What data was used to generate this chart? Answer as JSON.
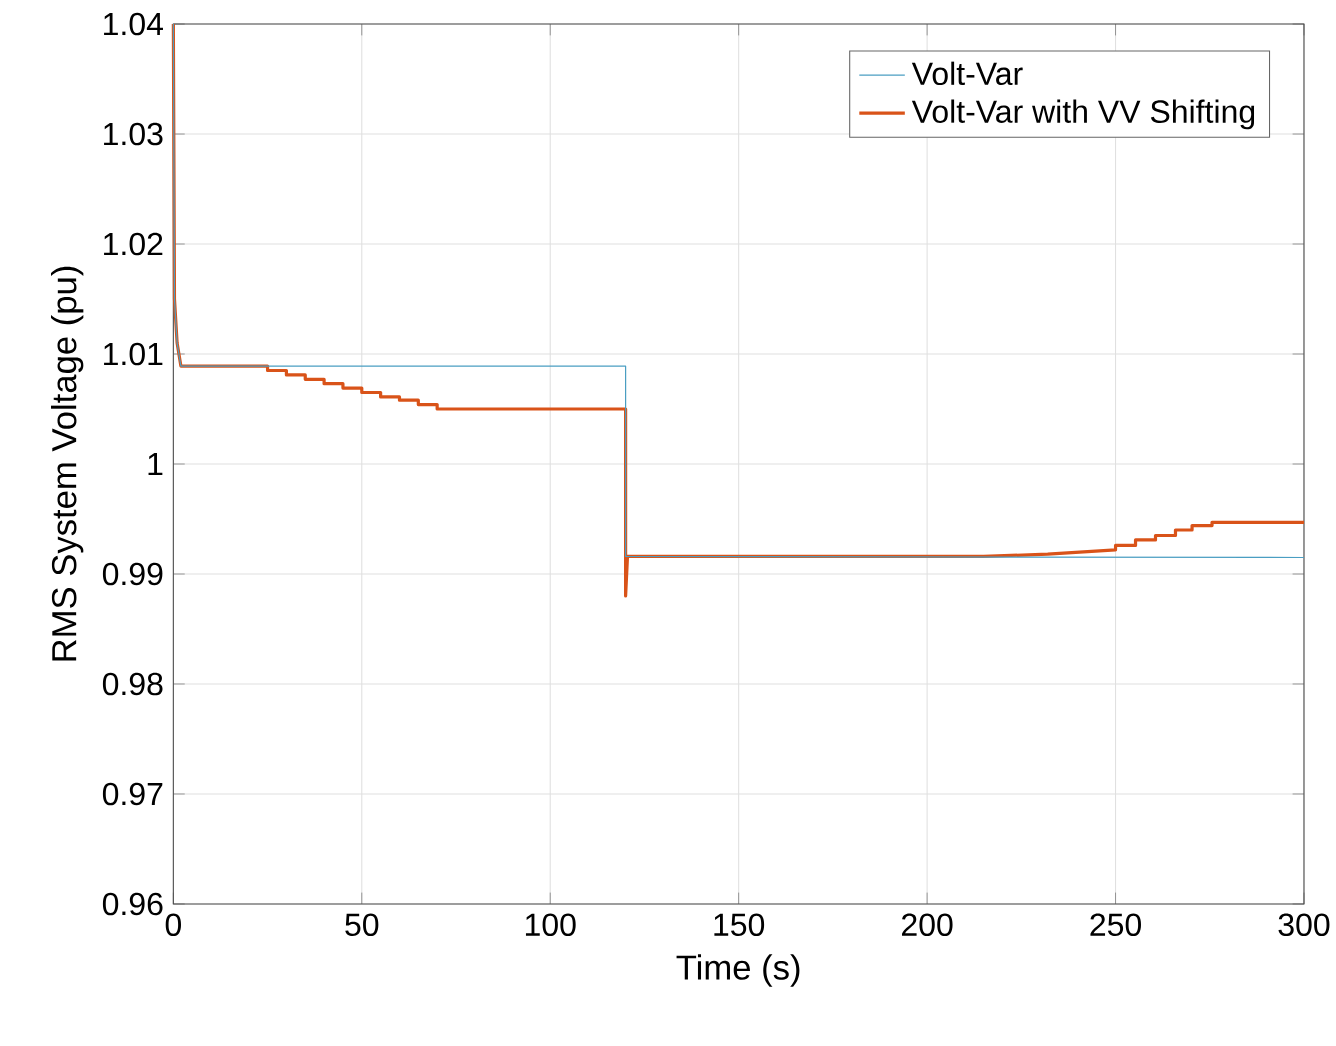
{
  "chart_data": {
    "type": "line",
    "xlabel": "Time (s)",
    "ylabel": "RMS System Voltage (pu)",
    "xlim": [
      0,
      300
    ],
    "ylim": [
      0.96,
      1.04
    ],
    "xticks": [
      0,
      50,
      100,
      150,
      200,
      250,
      300
    ],
    "yticks": [
      0.96,
      0.97,
      0.98,
      0.99,
      1,
      1.01,
      1.02,
      1.03,
      1.04
    ],
    "grid": true,
    "legend": "top right",
    "marker": "none",
    "line_style": "solid",
    "series": [
      {
        "name": "Volt-Var",
        "color": "#4a9ec2",
        "x": [
          0,
          0.3,
          1,
          2,
          120,
          120,
          300
        ],
        "values": [
          1.04,
          1.015,
          1.011,
          1.0089,
          1.0089,
          0.9916,
          0.9915
        ]
      },
      {
        "name": "Volt-Var with VV Shifting",
        "color": "#d95319",
        "x": [
          0,
          0.3,
          1,
          2,
          25,
          25,
          30,
          30,
          35,
          35,
          40,
          40,
          45,
          45,
          50,
          50,
          55,
          55,
          60,
          60,
          65,
          65,
          70,
          70,
          120,
          120,
          120.5,
          215,
          232,
          250,
          250,
          255.3,
          255.3,
          260.6,
          260.6,
          265.9,
          265.9,
          270.3,
          270.3,
          275.6,
          275.6,
          300
        ],
        "values": [
          1.04,
          1.015,
          1.011,
          1.0089,
          1.0089,
          1.0085,
          1.0085,
          1.0081,
          1.0081,
          1.0077,
          1.0077,
          1.0073,
          1.0073,
          1.0069,
          1.0069,
          1.0065,
          1.0065,
          1.0061,
          1.0061,
          1.0058,
          1.0058,
          1.0054,
          1.0054,
          1.005,
          1.005,
          0.988,
          0.9916,
          0.9916,
          0.9918,
          0.9922,
          0.9926,
          0.9926,
          0.9931,
          0.9931,
          0.9935,
          0.9935,
          0.994,
          0.994,
          0.9944,
          0.9944,
          0.9947,
          0.9947
        ]
      }
    ]
  }
}
